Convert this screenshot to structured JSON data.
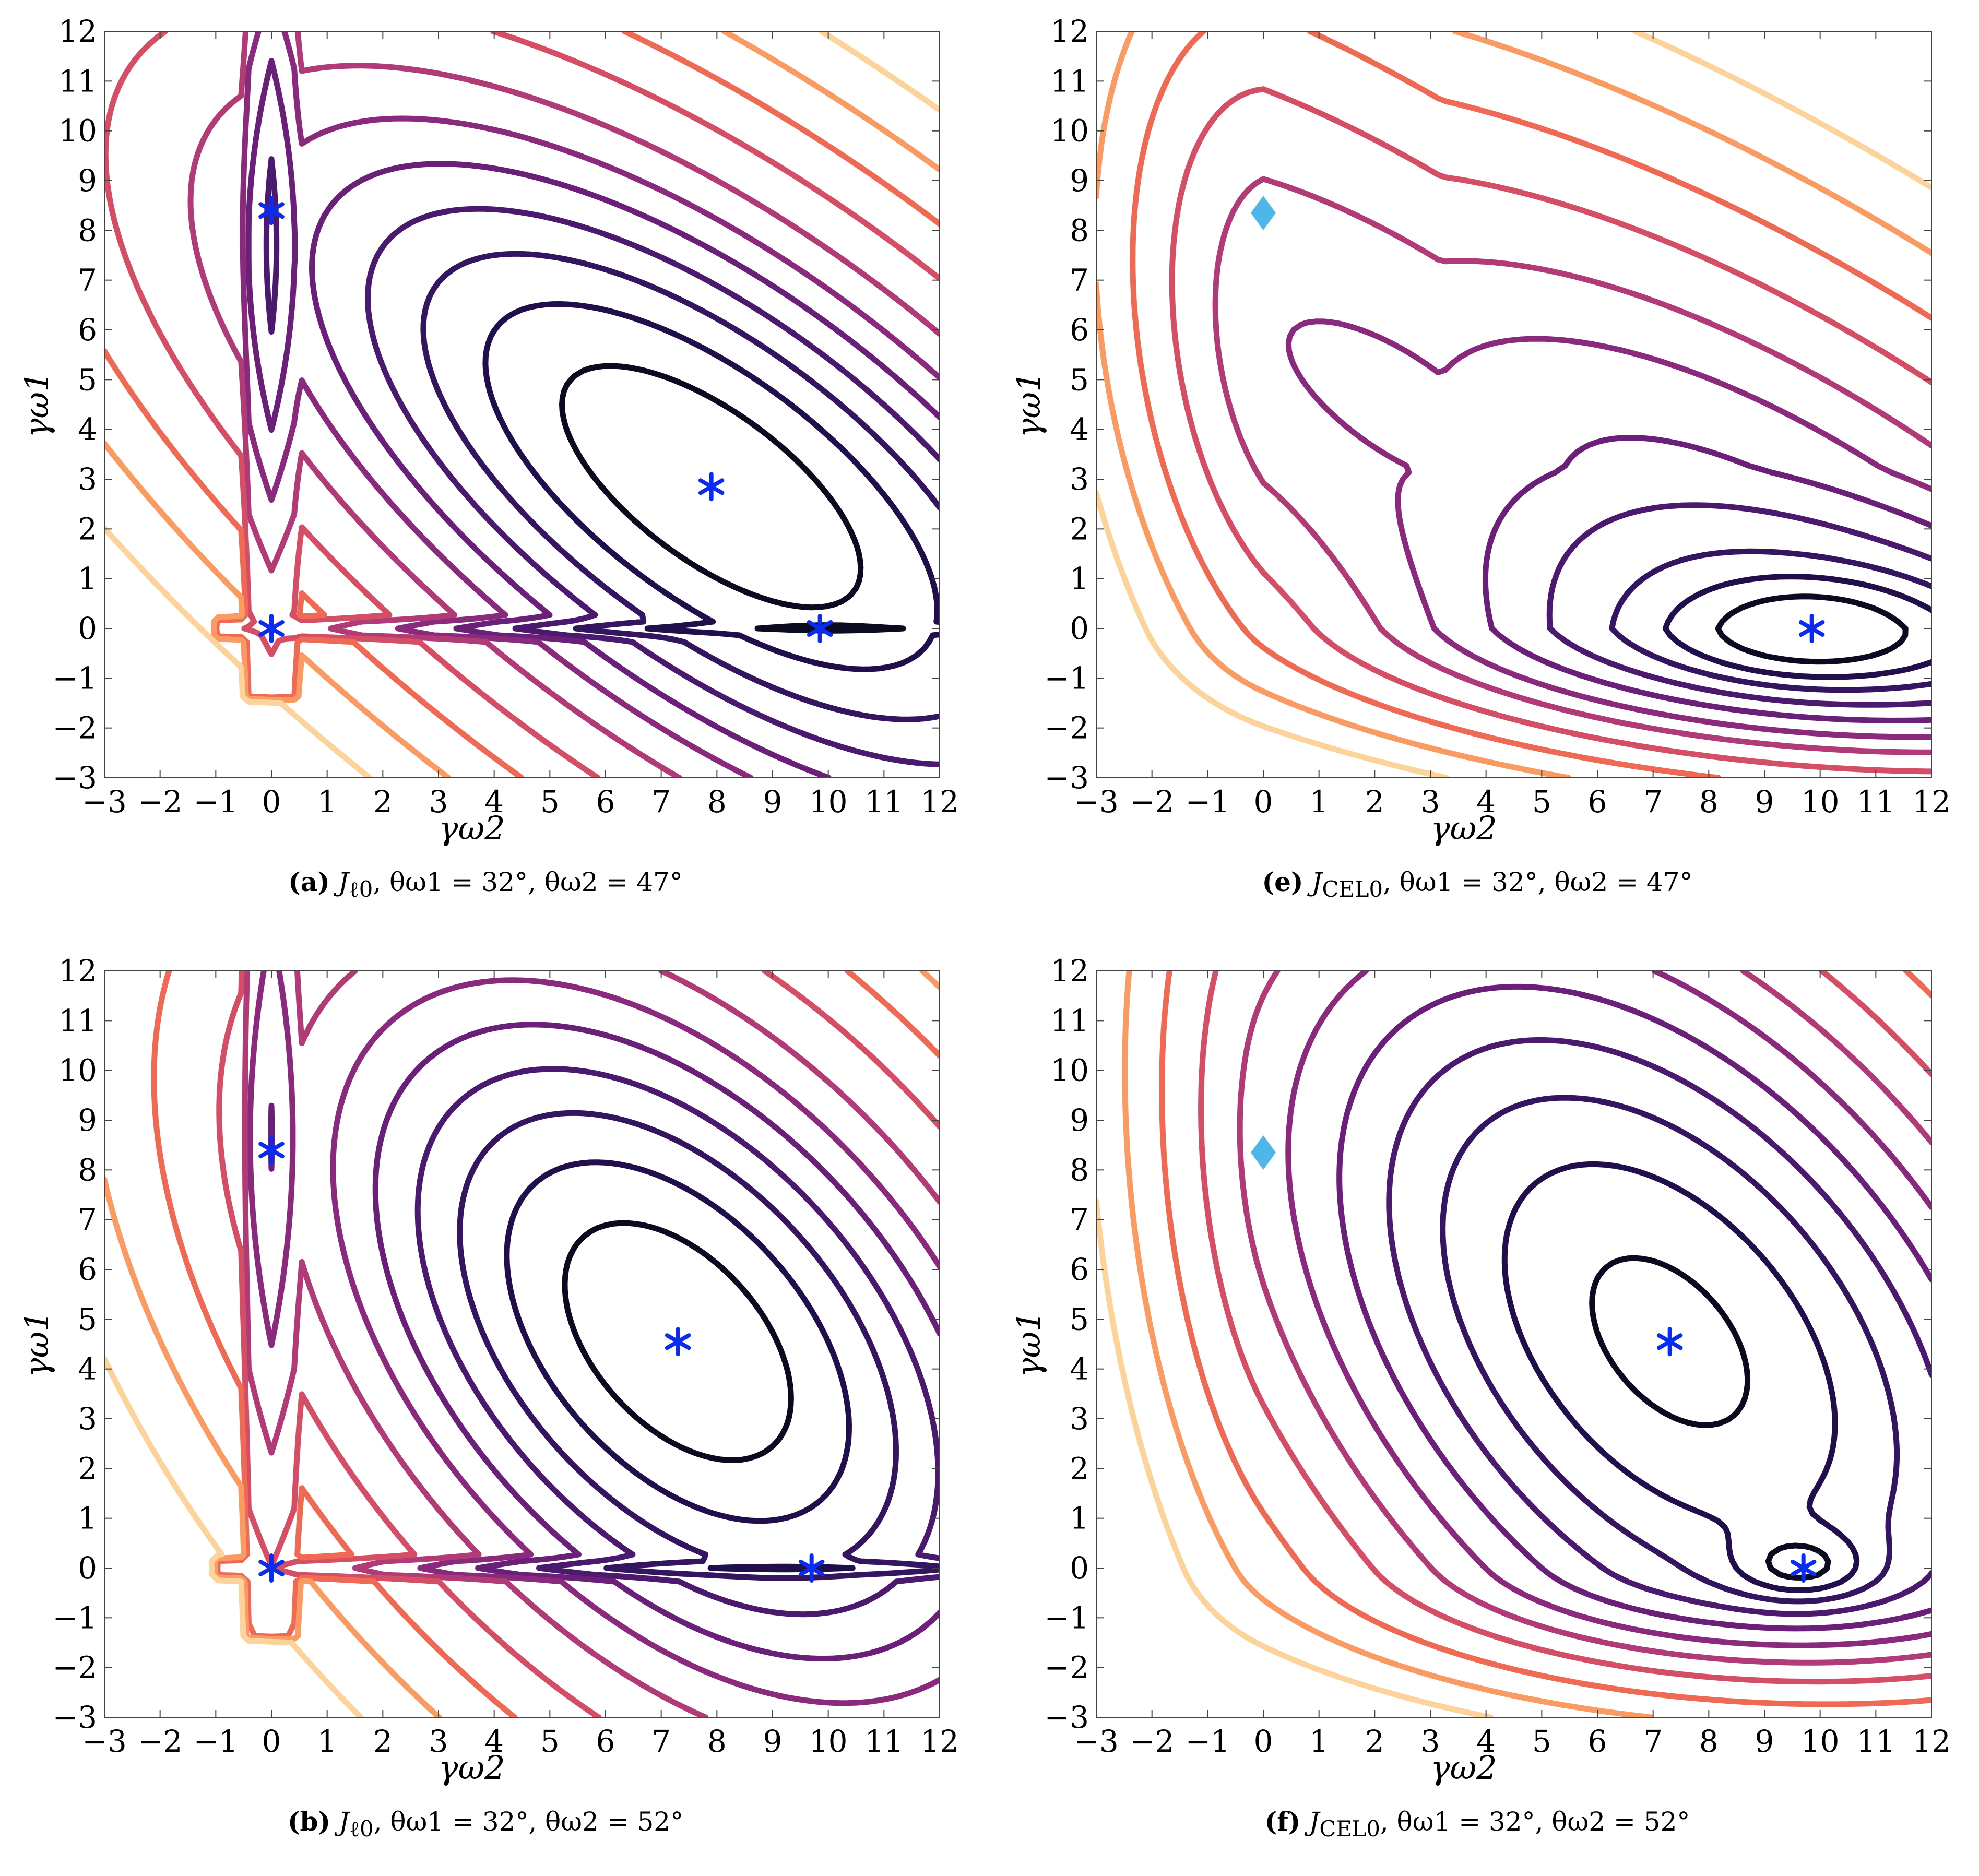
{
  "colors": {
    "marker": "#0a2cf0",
    "diamond": "#4fb6ea",
    "levels": [
      "#0b0b1f",
      "#200f4b",
      "#341660",
      "#4b1a6f",
      "#6a1f78",
      "#8a2a7d",
      "#b03b77",
      "#d44e66",
      "#ef6a54",
      "#f99b63",
      "#fcd39a"
    ]
  },
  "panels": [
    {
      "id": "a",
      "caption": {
        "tag": "(a)",
        "func": "J",
        "func_sub": "ℓ0",
        "rest": ", θω1 = 32°, θω2 = 47°"
      },
      "chart_data": {
        "type": "contour",
        "xlabel": "γω2",
        "ylabel": "γω1",
        "xlim": [
          -3,
          12
        ],
        "ylim": [
          -3,
          12
        ],
        "xticks": [
          -3,
          -2,
          -1,
          0,
          1,
          2,
          3,
          4,
          5,
          6,
          7,
          8,
          9,
          10,
          11,
          12
        ],
        "yticks": [
          -3,
          -2,
          -1,
          0,
          1,
          2,
          3,
          4,
          5,
          6,
          7,
          8,
          9,
          10,
          11,
          12
        ],
        "minimizers": [
          {
            "x": 0,
            "y": 8.4
          },
          {
            "x": 7.9,
            "y": 2.85
          },
          {
            "x": 0,
            "y": 0
          },
          {
            "x": 9.85,
            "y": 0
          }
        ],
        "diamond": null
      }
    },
    {
      "id": "e",
      "caption": {
        "tag": "(e)",
        "func": "J",
        "func_sub": "CEL0",
        "rest": ", θω1 = 32°, θω2 = 47°"
      },
      "chart_data": {
        "type": "contour",
        "xlabel": "γω2",
        "ylabel": "γω1",
        "xlim": [
          -3,
          12
        ],
        "ylim": [
          -3,
          12
        ],
        "xticks": [
          -3,
          -2,
          -1,
          0,
          1,
          2,
          3,
          4,
          5,
          6,
          7,
          8,
          9,
          10,
          11,
          12
        ],
        "yticks": [
          -3,
          -2,
          -1,
          0,
          1,
          2,
          3,
          4,
          5,
          6,
          7,
          8,
          9,
          10,
          11,
          12
        ],
        "minimizers": [
          {
            "x": 9.85,
            "y": 0
          }
        ],
        "diamond": {
          "x": 0,
          "y": 8.35
        }
      }
    },
    {
      "id": "b",
      "caption": {
        "tag": "(b)",
        "func": "J",
        "func_sub": "ℓ0",
        "rest": ", θω1 = 32°, θω2 = 52°"
      },
      "chart_data": {
        "type": "contour",
        "xlabel": "γω2",
        "ylabel": "γω1",
        "xlim": [
          -3,
          12
        ],
        "ylim": [
          -3,
          12
        ],
        "xticks": [
          -3,
          -2,
          -1,
          0,
          1,
          2,
          3,
          4,
          5,
          6,
          7,
          8,
          9,
          10,
          11,
          12
        ],
        "yticks": [
          -3,
          -2,
          -1,
          0,
          1,
          2,
          3,
          4,
          5,
          6,
          7,
          8,
          9,
          10,
          11,
          12
        ],
        "minimizers": [
          {
            "x": 0,
            "y": 8.4
          },
          {
            "x": 7.3,
            "y": 4.55
          },
          {
            "x": 0,
            "y": 0
          },
          {
            "x": 9.7,
            "y": 0
          }
        ],
        "diamond": null
      }
    },
    {
      "id": "f",
      "caption": {
        "tag": "(f)",
        "func": "J",
        "func_sub": "CEL0",
        "rest": ", θω1 = 32°, θω2 = 52°"
      },
      "chart_data": {
        "type": "contour",
        "xlabel": "γω2",
        "ylabel": "γω1",
        "xlim": [
          -3,
          12
        ],
        "ylim": [
          -3,
          12
        ],
        "xticks": [
          -3,
          -2,
          -1,
          0,
          1,
          2,
          3,
          4,
          5,
          6,
          7,
          8,
          9,
          10,
          11,
          12
        ],
        "yticks": [
          -3,
          -2,
          -1,
          0,
          1,
          2,
          3,
          4,
          5,
          6,
          7,
          8,
          9,
          10,
          11,
          12
        ],
        "minimizers": [
          {
            "x": 7.3,
            "y": 4.55
          },
          {
            "x": 9.7,
            "y": 0
          }
        ],
        "diamond": {
          "x": 0,
          "y": 8.35
        }
      }
    }
  ]
}
